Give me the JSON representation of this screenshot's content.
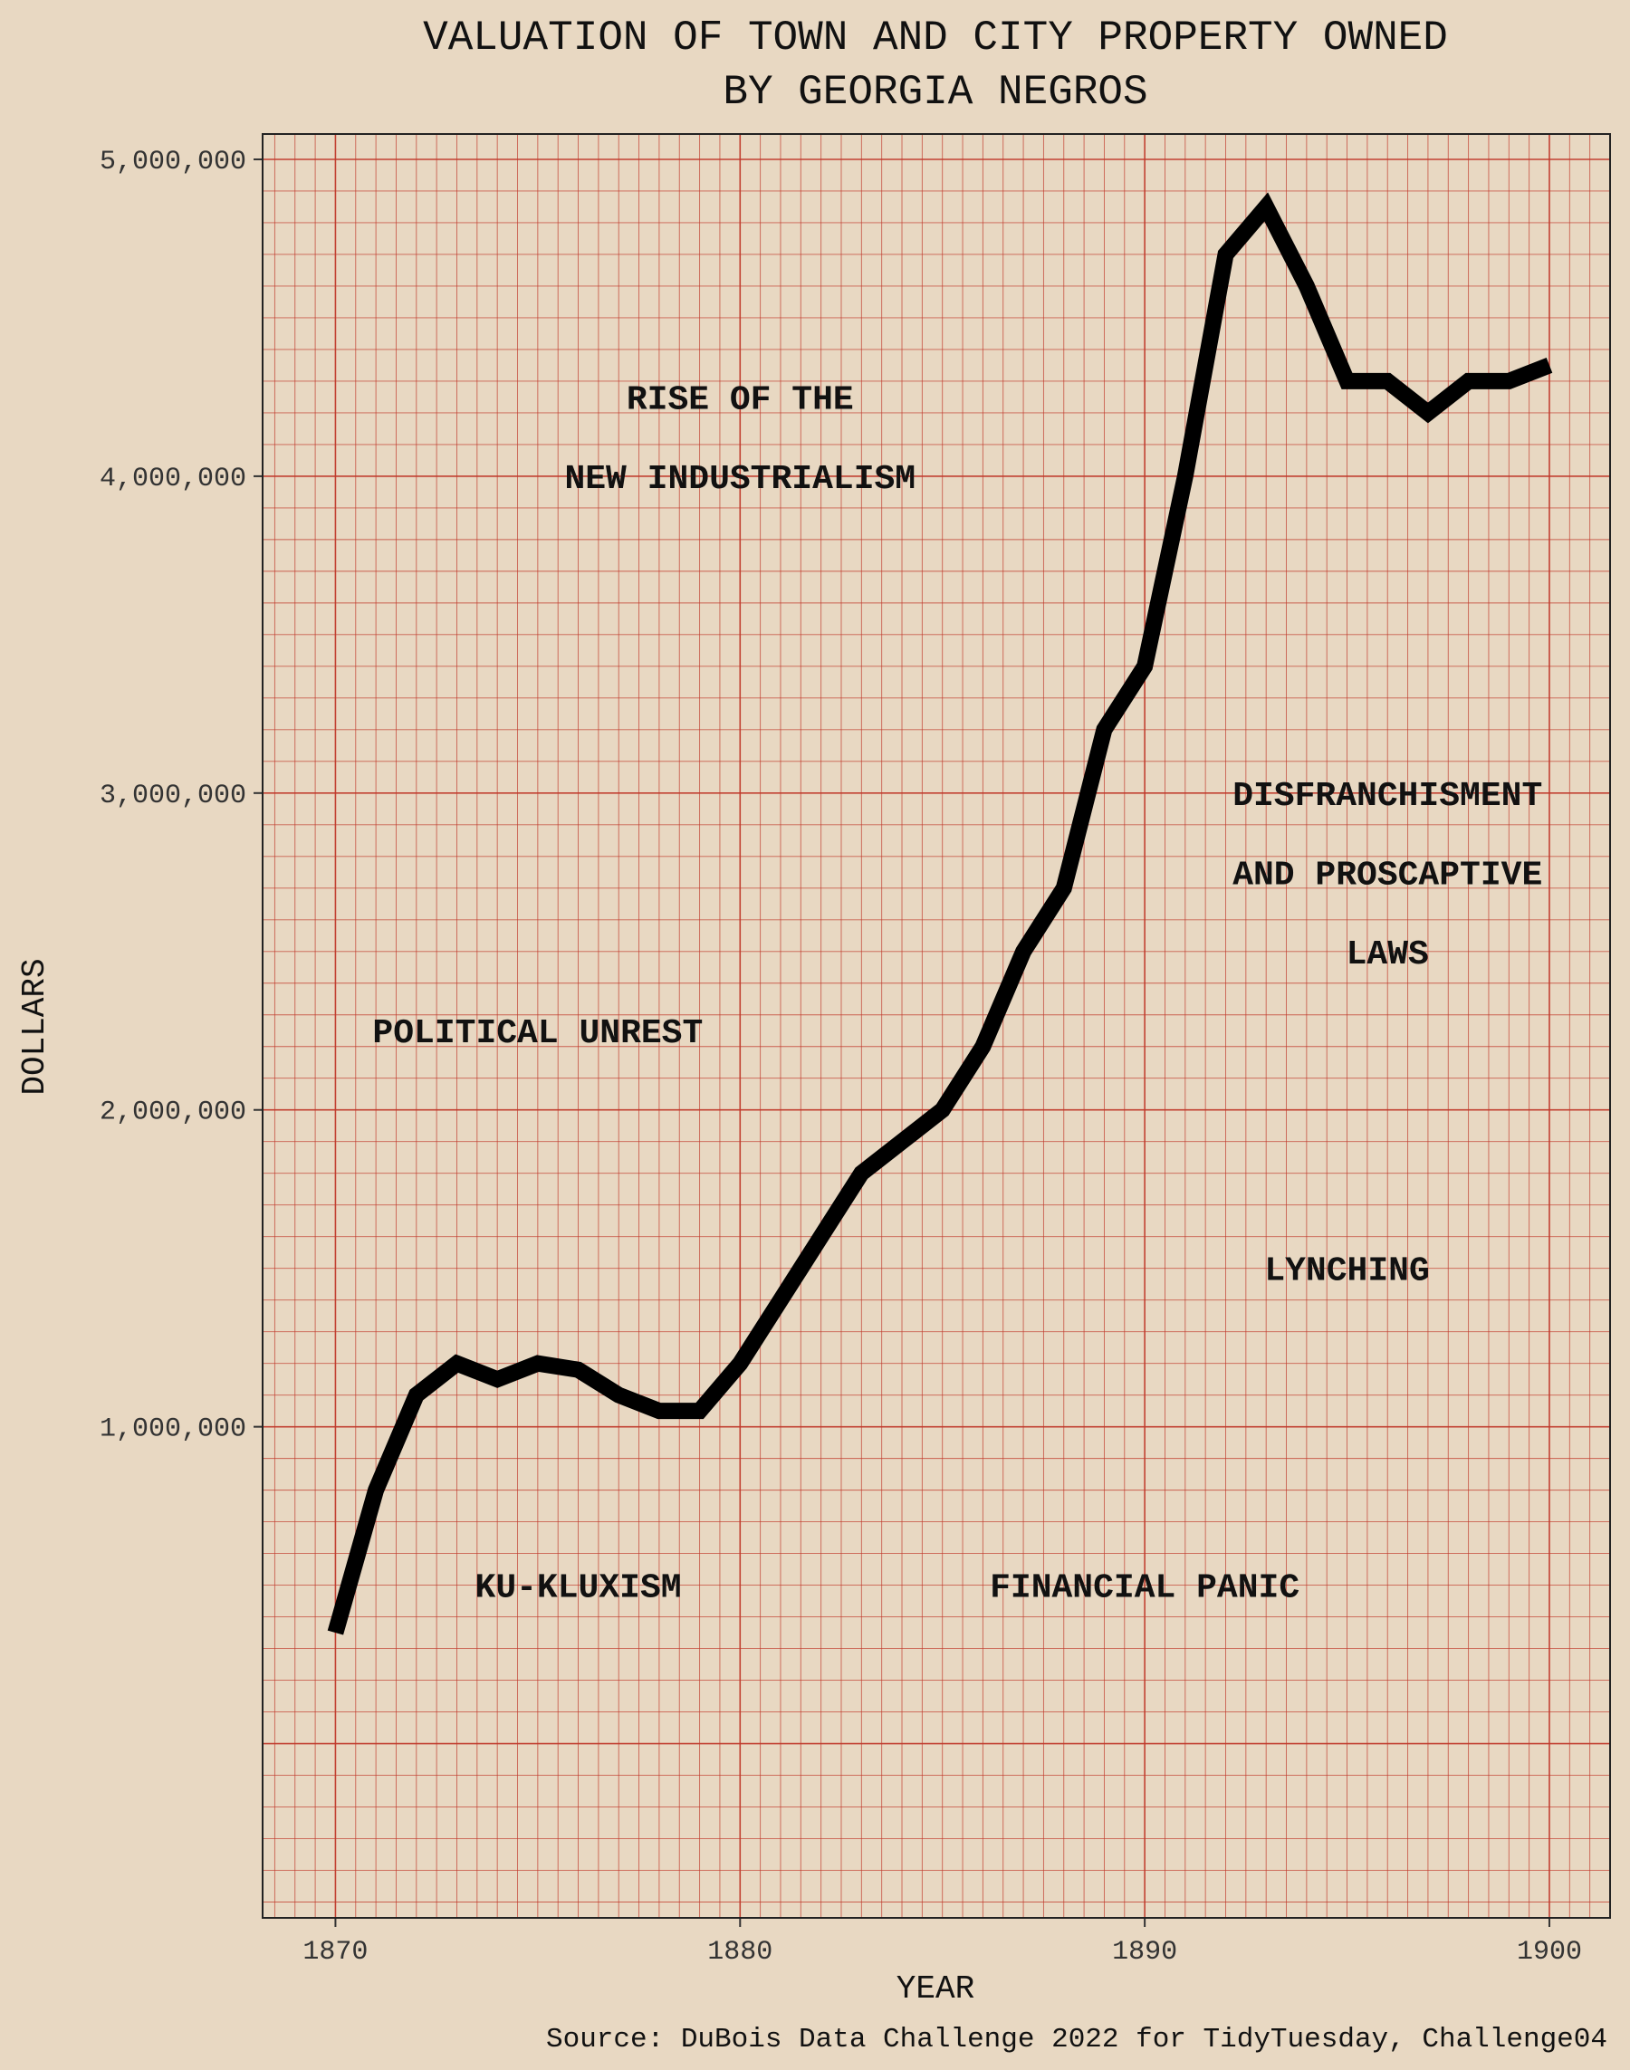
{
  "chart_data": {
    "type": "line",
    "title_lines": [
      "VALUATION OF TOWN AND CITY PROPERTY OWNED",
      "BY GEORGIA NEGROS"
    ],
    "xlabel": "YEAR",
    "ylabel": "DOLLARS",
    "caption": "Source: DuBois Data Challenge 2022 for TidyTuesday, Challenge04",
    "x": [
      1870,
      1871,
      1872,
      1873,
      1874,
      1875,
      1876,
      1877,
      1878,
      1879,
      1880,
      1881,
      1882,
      1883,
      1884,
      1885,
      1886,
      1887,
      1888,
      1889,
      1890,
      1891,
      1892,
      1893,
      1894,
      1895,
      1896,
      1897,
      1898,
      1899,
      1900
    ],
    "y": [
      350000,
      800000,
      1100000,
      1200000,
      1150000,
      1200000,
      1180000,
      1100000,
      1050000,
      1050000,
      1200000,
      1400000,
      1600000,
      1800000,
      1900000,
      2000000,
      2200000,
      2500000,
      2700000,
      3200000,
      3400000,
      4000000,
      4700000,
      4850000,
      4600000,
      4300000,
      4300000,
      4200000,
      4300000,
      4300000,
      4350000
    ],
    "xlim": [
      1868.2,
      1901.5
    ],
    "ylim": [
      -550000,
      5080000
    ],
    "xticks": [
      1870,
      1880,
      1890,
      1900
    ],
    "xtick_labels": [
      "1870",
      "1880",
      "1890",
      "1900"
    ],
    "yticks": [
      1000000,
      2000000,
      3000000,
      4000000,
      5000000
    ],
    "ytick_labels": [
      "1,000,000",
      "2,000,000",
      "3,000,000",
      "4,000,000",
      "5,000,000"
    ],
    "grid": true,
    "colors": {
      "background": "#e8d8c2",
      "grid": "#c0392b",
      "line": "#000000"
    },
    "annotations": [
      {
        "text": "RISE OF THE",
        "x": 1880,
        "y": 4250000
      },
      {
        "text": "NEW INDUSTRIALISM",
        "x": 1880,
        "y": 4000000
      },
      {
        "text": "DISFRANCHISMENT",
        "x": 1896,
        "y": 3000000
      },
      {
        "text": "AND PROSCAPTIVE",
        "x": 1896,
        "y": 2750000
      },
      {
        "text": "LAWS",
        "x": 1896,
        "y": 2500000
      },
      {
        "text": "POLITICAL UNREST",
        "x": 1875,
        "y": 2250000
      },
      {
        "text": "LYNCHING",
        "x": 1895,
        "y": 1500000
      },
      {
        "text": "KU-KLUXISM",
        "x": 1876,
        "y": 500000
      },
      {
        "text": "FINANCIAL PANIC",
        "x": 1890,
        "y": 500000
      }
    ]
  }
}
